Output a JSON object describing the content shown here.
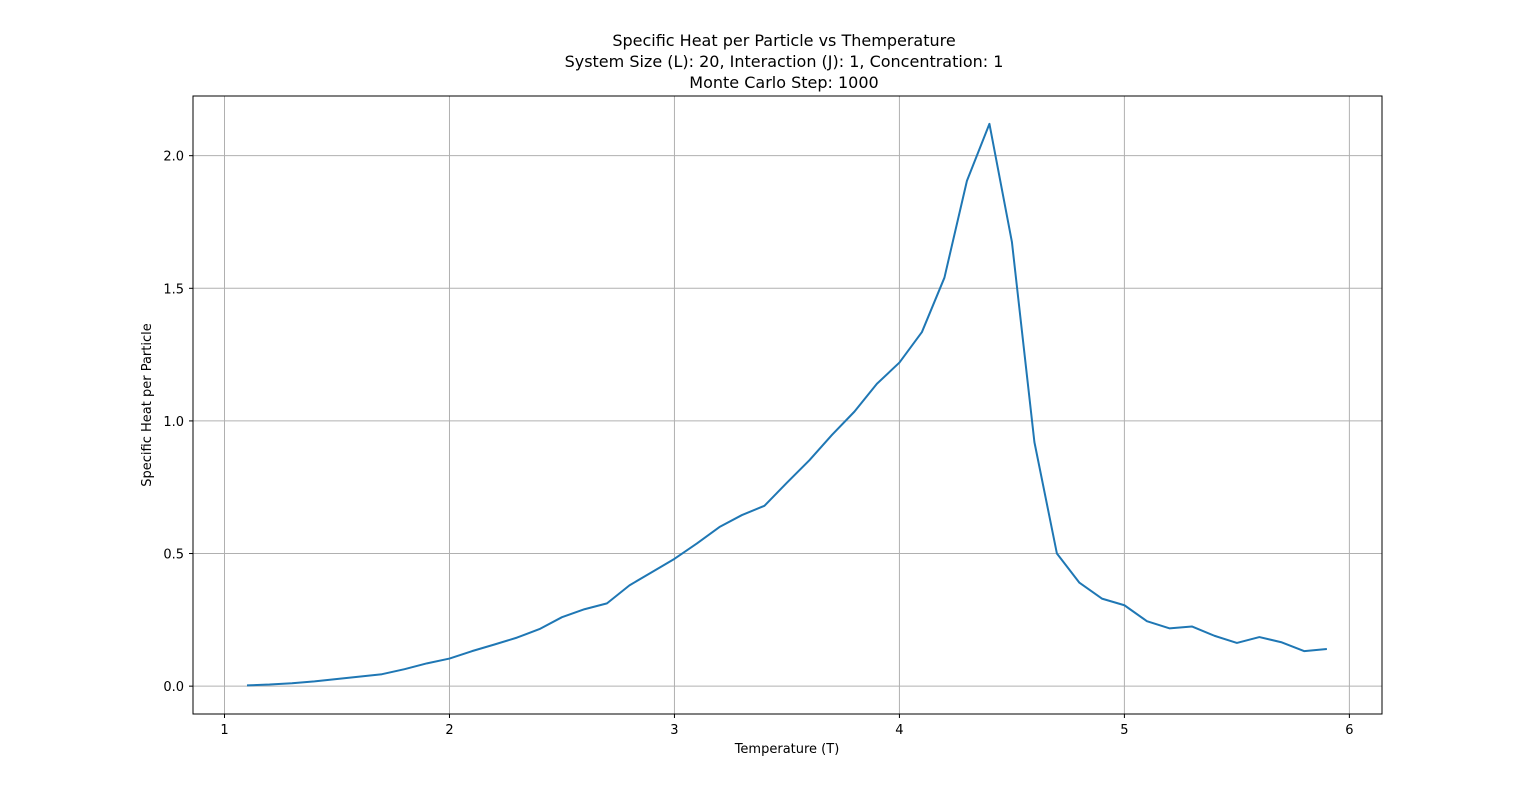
{
  "chart_data": {
    "type": "line",
    "title": "Specific Heat per Particle vs Themperature",
    "subtitle_lines": [
      "System Size (L): 20, Interaction (J): 1, Concentration: 1",
      "Monte Carlo Step: 1000"
    ],
    "xlabel": "Temperature (T)",
    "ylabel": "Specific Heat per Particle",
    "xlim": [
      0.86,
      6.145
    ],
    "ylim": [
      -0.105,
      2.225
    ],
    "xticks": [
      "1",
      "2",
      "3",
      "4",
      "5",
      "6"
    ],
    "yticks": [
      "0.0",
      "0.5",
      "1.0",
      "1.5",
      "2.0"
    ],
    "grid": true,
    "legend": "none",
    "series": [
      {
        "color": "#1f77b4",
        "x": [
          1.1,
          1.2,
          1.3,
          1.4,
          1.5,
          1.6,
          1.7,
          1.8,
          1.9,
          2.0,
          2.1,
          2.2,
          2.3,
          2.4,
          2.5,
          2.6,
          2.7,
          2.8,
          2.9,
          3.0,
          3.1,
          3.2,
          3.3,
          3.4,
          3.5,
          3.6,
          3.7,
          3.8,
          3.9,
          4.0,
          4.1,
          4.2,
          4.3,
          4.4,
          4.5,
          4.6,
          4.7,
          4.8,
          4.9,
          5.0,
          5.1,
          5.2,
          5.3,
          5.4,
          5.5,
          5.6,
          5.7,
          5.8,
          5.9
        ],
        "y": [
          0.003,
          0.006,
          0.011,
          0.018,
          0.027,
          0.036,
          0.045,
          0.064,
          0.086,
          0.104,
          0.132,
          0.157,
          0.183,
          0.215,
          0.26,
          0.29,
          0.312,
          0.38,
          0.43,
          0.48,
          0.538,
          0.6,
          0.645,
          0.68,
          0.767,
          0.852,
          0.947,
          1.035,
          1.14,
          1.22,
          1.335,
          1.54,
          1.905,
          2.12,
          1.675,
          0.92,
          0.5,
          0.39,
          0.33,
          0.305,
          0.245,
          0.218,
          0.225,
          0.19,
          0.163,
          0.185,
          0.165,
          0.132,
          0.14
        ]
      }
    ]
  }
}
